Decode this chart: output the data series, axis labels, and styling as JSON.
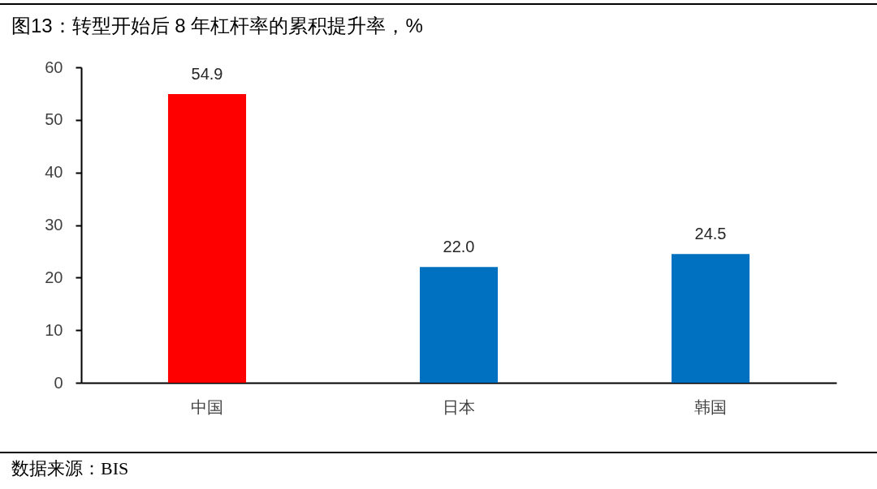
{
  "chart_data": {
    "type": "bar",
    "title": "图13：转型开始后 8 年杠杆率的累积提升率，%",
    "categories": [
      "中国",
      "日本",
      "韩国"
    ],
    "values": [
      54.9,
      22.0,
      24.5
    ],
    "colors": [
      "#ff0000",
      "#0070c0",
      "#0070c0"
    ],
    "value_labels": [
      "54.9",
      "22.0",
      "24.5"
    ],
    "ylim": [
      0,
      60
    ],
    "yticks": [
      0,
      10,
      20,
      30,
      40,
      50,
      60
    ],
    "annotations": [
      "数据来源：BIS"
    ]
  }
}
